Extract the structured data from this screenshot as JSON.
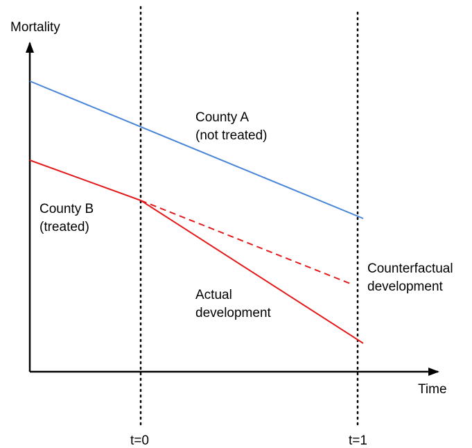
{
  "axes": {
    "y_label": "Mortality",
    "x_label": "Time"
  },
  "time_markers": [
    "t=0",
    "t=1"
  ],
  "annotations": [
    {
      "lines": [
        "County A",
        "(not treated)"
      ]
    },
    {
      "lines": [
        "County B",
        "(treated)"
      ]
    },
    {
      "lines": [
        "Counterfactual",
        "development"
      ]
    },
    {
      "lines": [
        "Actual",
        "development"
      ]
    }
  ]
}
